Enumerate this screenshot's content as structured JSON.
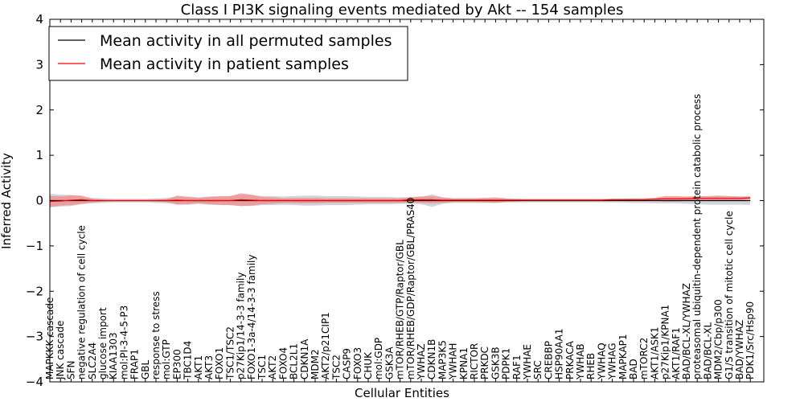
{
  "chart_data": {
    "type": "line",
    "title": "Class I PI3K signaling events mediated by Akt -- 154 samples",
    "xlabel": "Cellular Entities",
    "ylabel": "Inferred Activity",
    "ylim": [
      -4,
      4
    ],
    "yticks": [
      -4,
      -3,
      -2,
      -1,
      0,
      1,
      2,
      3,
      4
    ],
    "ytick_labels": [
      "−4",
      "−3",
      "−2",
      "−1",
      "0",
      "1",
      "2",
      "3",
      "4"
    ],
    "legend_position": "top-left",
    "categories": [
      "MAPKKK cascade",
      "JNK cascade",
      "SFN",
      "negative regulation of cell cycle",
      "SLC2A4",
      "glucose import",
      "KIAA1303",
      "mol:PI-3-4-5-P3",
      "FRAP1",
      "GBL",
      "response to stress",
      "mol:GTP",
      "EP300",
      "TBC1D4",
      "AKT1",
      "AKT3",
      "FOXO1",
      "TSC1/TSC2",
      "p27Kip1/14-3-3 family",
      "FOXO1-3a-4/14-3-3 family",
      "TSC1",
      "AKT2",
      "FOXO4",
      "BCL2L1",
      "CDKN1A",
      "MDM2",
      "AKT2/p21CIP1",
      "TSC2",
      "CASP9",
      "FOXO3",
      "CHUK",
      "mol:GDP",
      "GSK3A",
      "mTOR/RHEB/GTP/Raptor/GBL",
      "mTOR/RHEB/GDP/Raptor/GBL/PRAS40",
      "YWHAZ",
      "CDKN1B",
      "MAP3K5",
      "YWHAH",
      "KPNA1",
      "RICTOR",
      "PRKDC",
      "GSK3B",
      "PDPK1",
      "RAF1",
      "YWHAE",
      "SRC",
      "CREBBP",
      "HSP90AA1",
      "PRKACA",
      "YWHAB",
      "RHEB",
      "YWHAQ",
      "YWHAG",
      "MAPKAP1",
      "BAD",
      "mTORC2",
      "AKT1/ASK1",
      "p27Kip1/KPNA1",
      "AKT1/RAF1",
      "BAD/BCL-XL/YWHAZ",
      "proteasomal ubiquitin-dependent protein catabolic process",
      "BAD/BCL-XL",
      "MDM2/Cbp/p300",
      "G1/S transition of mitotic cell cycle",
      "BAD/YWHAZ",
      "PDK1/Src/Hsp90"
    ],
    "series": [
      {
        "name": "Mean activity in all permuted samples",
        "color": "#000000",
        "band_color": "#c8c8d2",
        "values": [
          0,
          0,
          0,
          0,
          0,
          0,
          0,
          0,
          0,
          0,
          0,
          0,
          0,
          0,
          0,
          0,
          0,
          0,
          0,
          0,
          0,
          0,
          0,
          0,
          0,
          0,
          0,
          0,
          0,
          0,
          0,
          0,
          0,
          0,
          0,
          0,
          0,
          0,
          0,
          0,
          0,
          0,
          0,
          0,
          0,
          0,
          0,
          0,
          0,
          0,
          0,
          0,
          0,
          0,
          0,
          0,
          0,
          0,
          0,
          0,
          0,
          0,
          0,
          0,
          0,
          0,
          0
        ],
        "band": [
          0.15,
          0.13,
          0.12,
          0.08,
          0.06,
          0.05,
          0.04,
          0.04,
          0.04,
          0.04,
          0.05,
          0.06,
          0.08,
          0.09,
          0.07,
          0.09,
          0.1,
          0.1,
          0.12,
          0.12,
          0.1,
          0.1,
          0.09,
          0.1,
          0.11,
          0.11,
          0.1,
          0.1,
          0.1,
          0.09,
          0.08,
          0.08,
          0.08,
          0.07,
          0.07,
          0.08,
          0.14,
          0.07,
          0.05,
          0.05,
          0.05,
          0.05,
          0.05,
          0.04,
          0.04,
          0.04,
          0.04,
          0.04,
          0.04,
          0.04,
          0.04,
          0.04,
          0.04,
          0.04,
          0.04,
          0.05,
          0.05,
          0.06,
          0.06,
          0.06,
          0.07,
          0.08,
          0.09,
          0.09,
          0.09,
          0.09,
          0.09
        ]
      },
      {
        "name": "Mean activity in patient samples",
        "color": "#ff0000",
        "band_color": "#f08c8c",
        "values": [
          -0.02,
          -0.01,
          0.01,
          0.02,
          0.0,
          0.0,
          0.0,
          0.0,
          0.0,
          0.0,
          0.0,
          0.0,
          0.01,
          0.0,
          0.0,
          0.0,
          0.0,
          0.0,
          0.02,
          0.01,
          0.0,
          0.0,
          0.0,
          0.0,
          0.0,
          0.0,
          0.0,
          0.0,
          0.0,
          0.0,
          0.0,
          0.0,
          0.0,
          0.0,
          0.02,
          0.02,
          0.02,
          0.01,
          0.01,
          0.01,
          0.01,
          0.01,
          0.01,
          0.01,
          0.01,
          0.01,
          0.01,
          0.01,
          0.01,
          0.01,
          0.01,
          0.01,
          0.01,
          0.02,
          0.02,
          0.02,
          0.02,
          0.03,
          0.04,
          0.04,
          0.04,
          0.05,
          0.05,
          0.05,
          0.05,
          0.05,
          0.06
        ],
        "band": [
          0.12,
          0.1,
          0.11,
          0.09,
          0.04,
          0.02,
          0.01,
          0.01,
          0.01,
          0.01,
          0.02,
          0.03,
          0.1,
          0.08,
          0.06,
          0.08,
          0.09,
          0.1,
          0.14,
          0.12,
          0.08,
          0.07,
          0.05,
          0.06,
          0.06,
          0.06,
          0.05,
          0.05,
          0.05,
          0.05,
          0.05,
          0.05,
          0.05,
          0.05,
          0.06,
          0.07,
          0.08,
          0.06,
          0.04,
          0.04,
          0.04,
          0.05,
          0.06,
          0.04,
          0.03,
          0.02,
          0.02,
          0.02,
          0.02,
          0.02,
          0.02,
          0.02,
          0.02,
          0.02,
          0.02,
          0.02,
          0.02,
          0.03,
          0.06,
          0.06,
          0.05,
          0.05,
          0.05,
          0.06,
          0.05,
          0.04,
          0.03
        ]
      }
    ]
  }
}
